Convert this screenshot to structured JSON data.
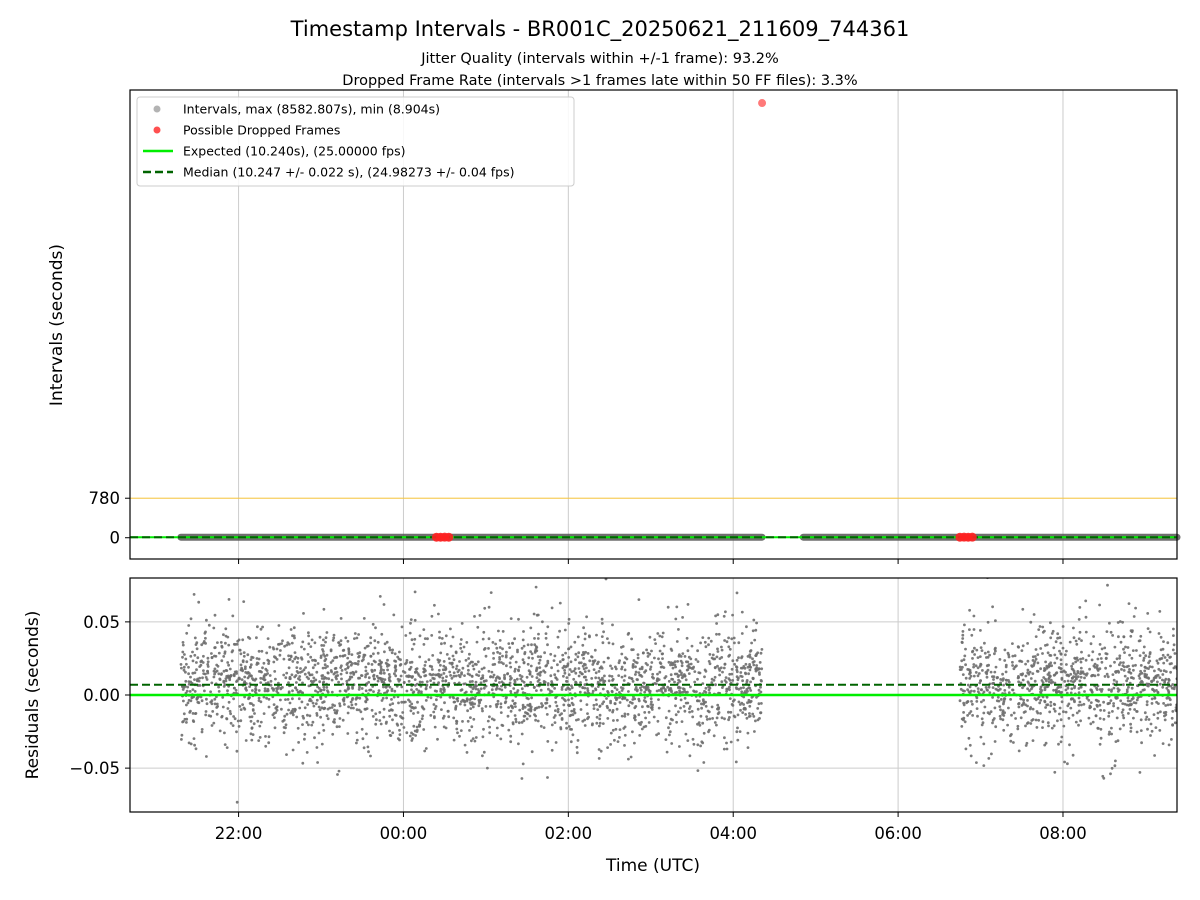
{
  "figure": {
    "title": "Timestamp Intervals - BR001C_20250621_211609_744361",
    "subtitle_1": "Jitter Quality (intervals within +/-1 frame): 93.2%",
    "subtitle_2": "Dropped Frame Rate (intervals >1 frames late within 50 FF files): 3.3%"
  },
  "colors": {
    "intervals": "#808080",
    "dropped": "#ff0000",
    "expected": "#00ee00",
    "median": "#006400",
    "threshold": "#f5c542",
    "grid": "#cccccc"
  },
  "chart_data": [
    {
      "type": "scatter",
      "panel": "top",
      "ylabel": "Intervals (seconds)",
      "yticks": [
        0,
        780
      ],
      "ylim": [
        -420,
        8840
      ],
      "xlim_hours": [
        20.683,
        33.383
      ],
      "threshold_line": 780,
      "legend_placement": "upper-left",
      "legend": [
        {
          "label": "Intervals, max (8582.807s), min (8.904s)",
          "kind": "marker",
          "color": "#999999"
        },
        {
          "label": "Possible Dropped Frames",
          "kind": "marker",
          "color": "#ff5050"
        },
        {
          "label": "Expected (10.240s), (25.00000 fps)",
          "kind": "line",
          "color": "#00ee00"
        },
        {
          "label": "Median (10.247 +/- 0.022 s), (24.98273 +/- 0.04 fps)",
          "kind": "dashed",
          "color": "#006400"
        }
      ],
      "series": [
        {
          "name": "Intervals",
          "segments_hours": [
            [
              21.3,
              28.35
            ],
            [
              28.85,
              33.383
            ]
          ],
          "value": 10.24
        },
        {
          "name": "Possible Dropped Frames",
          "points": [
            {
              "hour": 24.4,
              "value": 10.5
            },
            {
              "hour": 24.45,
              "value": 10.6
            },
            {
              "hour": 24.5,
              "value": 10.8
            },
            {
              "hour": 24.55,
              "value": 10.5
            },
            {
              "hour": 28.35,
              "value": 8582.807
            },
            {
              "hour": 30.75,
              "value": 10.6
            },
            {
              "hour": 30.8,
              "value": 10.7
            },
            {
              "hour": 30.85,
              "value": 10.5
            },
            {
              "hour": 30.9,
              "value": 10.8
            }
          ]
        }
      ],
      "expected": 10.24,
      "median": 10.247
    },
    {
      "type": "scatter",
      "panel": "bottom",
      "xlabel": "Time (UTC)",
      "ylabel": "Residuals (seconds)",
      "ylim": [
        -0.08,
        0.08
      ],
      "yticks": [
        0.05,
        0.0,
        -0.05
      ],
      "ytick_labels": [
        "0.05",
        "0.00",
        "−0.05"
      ],
      "xlim_hours": [
        20.683,
        33.383
      ],
      "xticks_hours": [
        22,
        24,
        26,
        28,
        30,
        32
      ],
      "xtick_labels": [
        "22:00",
        "00:00",
        "02:00",
        "04:00",
        "06:00",
        "08:00"
      ],
      "expected_residual": 0.0,
      "median_residual": 0.007,
      "residual_segments_hours": [
        [
          21.3,
          28.35
        ],
        [
          30.75,
          33.383
        ]
      ]
    }
  ]
}
